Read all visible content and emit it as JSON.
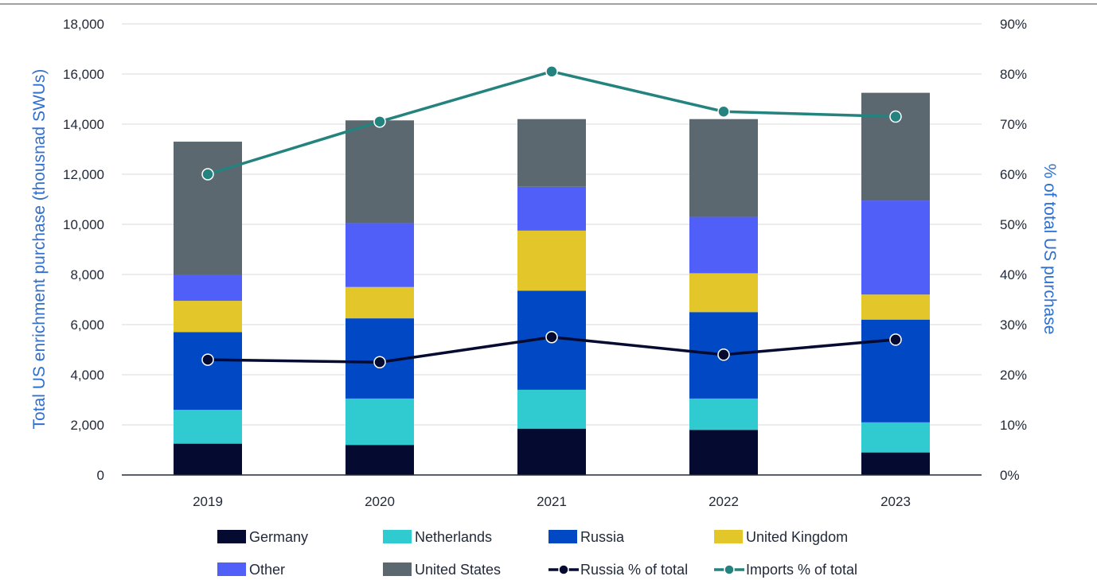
{
  "chart_data": {
    "type": "bar",
    "stacked": true,
    "categories": [
      "2019",
      "2020",
      "2021",
      "2022",
      "2023"
    ],
    "ylabel": "Total US enrichment purchase (thousnad SWUs)",
    "y2label": "% of total US purchase",
    "ylim": [
      0,
      18000
    ],
    "y2lim": [
      0,
      90
    ],
    "yticks": [
      "0",
      "2,000",
      "4,000",
      "6,000",
      "8,000",
      "10,000",
      "12,000",
      "14,000",
      "16,000",
      "18,000"
    ],
    "y2ticks": [
      "0%",
      "10%",
      "20%",
      "30%",
      "40%",
      "50%",
      "60%",
      "70%",
      "80%",
      "90%"
    ],
    "grid": true,
    "legend_position": "bottom",
    "series": [
      {
        "name": "Germany",
        "color": "#050a30",
        "values": [
          1250,
          1200,
          1850,
          1800,
          900
        ]
      },
      {
        "name": "Netherlands",
        "color": "#2fcbd0",
        "values": [
          1350,
          1850,
          1550,
          1250,
          1200
        ]
      },
      {
        "name": "Russia",
        "color": "#0048c4",
        "values": [
          3100,
          3200,
          3950,
          3450,
          4100
        ]
      },
      {
        "name": "United Kingdom",
        "color": "#e2c62a",
        "values": [
          1250,
          1250,
          2400,
          1550,
          1000
        ]
      },
      {
        "name": "Other",
        "color": "#4f5ff7",
        "values": [
          1050,
          2550,
          1750,
          2250,
          3750
        ]
      },
      {
        "name": "United States",
        "color": "#5c6870",
        "values": [
          5300,
          4100,
          2700,
          3900,
          4300
        ]
      }
    ],
    "lines": [
      {
        "name": "Russia % of total",
        "color": "#050a30",
        "axis": "right",
        "values": [
          23,
          22.5,
          27.5,
          24,
          27
        ]
      },
      {
        "name": "Imports % of total",
        "color": "#24837f",
        "axis": "right",
        "values": [
          60,
          70.5,
          80.5,
          72.5,
          71.5
        ]
      }
    ]
  }
}
